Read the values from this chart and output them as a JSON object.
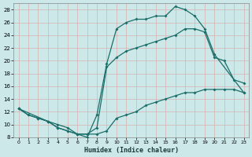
{
  "title": "",
  "xlabel": "Humidex (Indice chaleur)",
  "ylabel": "",
  "bg_color": "#cce8e8",
  "line_color": "#1a6e6a",
  "grid_color": "#b0d4d4",
  "xlim": [
    -0.5,
    23.5
  ],
  "ylim": [
    8,
    29
  ],
  "xticks": [
    0,
    1,
    2,
    3,
    4,
    5,
    6,
    7,
    8,
    9,
    10,
    11,
    12,
    13,
    14,
    15,
    16,
    17,
    18,
    19,
    20,
    21,
    22,
    23
  ],
  "yticks": [
    8,
    10,
    12,
    14,
    16,
    18,
    20,
    22,
    24,
    26,
    28
  ],
  "line_upper": {
    "x": [
      0,
      1,
      2,
      3,
      4,
      5,
      6,
      7,
      8,
      9,
      10,
      11,
      12,
      13,
      14,
      15,
      16,
      17,
      18,
      19,
      20,
      23
    ],
    "y": [
      12.5,
      11.5,
      11.0,
      10.5,
      10.0,
      9.5,
      8.5,
      8.0,
      11.5,
      19.5,
      25.0,
      26.0,
      26.5,
      26.5,
      27.0,
      27.0,
      28.5,
      28.0,
      27.0,
      25.0,
      21.0,
      15.0
    ]
  },
  "line_mid": {
    "x": [
      0,
      3,
      4,
      5,
      6,
      7,
      8,
      9,
      10,
      11,
      12,
      13,
      14,
      15,
      16,
      17,
      18,
      19,
      20,
      21,
      22,
      23
    ],
    "y": [
      12.5,
      10.5,
      9.5,
      9.0,
      8.5,
      8.5,
      9.5,
      19.0,
      20.5,
      21.5,
      22.0,
      22.5,
      23.0,
      23.5,
      24.0,
      25.0,
      25.0,
      24.5,
      20.5,
      20.0,
      17.0,
      16.5
    ]
  },
  "line_lower": {
    "x": [
      0,
      1,
      2,
      3,
      4,
      5,
      6,
      7,
      8,
      9,
      10,
      11,
      12,
      13,
      14,
      15,
      16,
      17,
      18,
      19,
      20,
      21,
      22,
      23
    ],
    "y": [
      12.5,
      11.5,
      11.0,
      10.5,
      9.5,
      9.0,
      8.5,
      8.5,
      8.5,
      9.0,
      11.0,
      11.5,
      12.0,
      13.0,
      13.5,
      14.0,
      14.5,
      15.0,
      15.0,
      15.5,
      15.5,
      15.5,
      15.5,
      15.0
    ]
  }
}
